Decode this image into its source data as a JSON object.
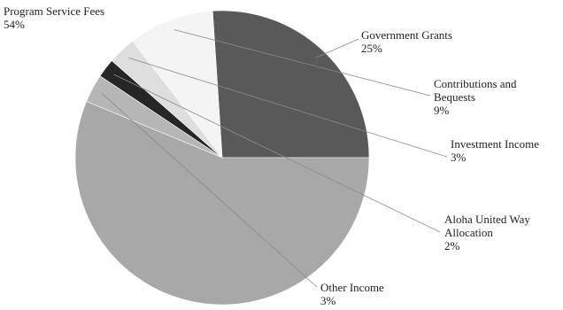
{
  "chart_data": {
    "type": "pie",
    "title": "",
    "slices": [
      {
        "label": "Government Grants",
        "value": 25,
        "display": "25%",
        "color": "#595959"
      },
      {
        "label": "Contributions and Bequests",
        "value": 9,
        "display": "9%",
        "color": "#f4f4f4"
      },
      {
        "label": "Investment Income",
        "value": 3,
        "display": "3%",
        "color": "#dedede"
      },
      {
        "label": "Aloha United Way Allocation",
        "value": 2,
        "display": "2%",
        "color": "#262626"
      },
      {
        "label": "Other Income",
        "value": 3,
        "display": "3%",
        "color": "#b6b6b6"
      },
      {
        "label": "Program Service Fees",
        "value": 54,
        "display": "54%",
        "color": "#a8a8a8"
      }
    ],
    "start_angle_deg": 0,
    "direction": "counterclockwise",
    "legend": "none"
  }
}
